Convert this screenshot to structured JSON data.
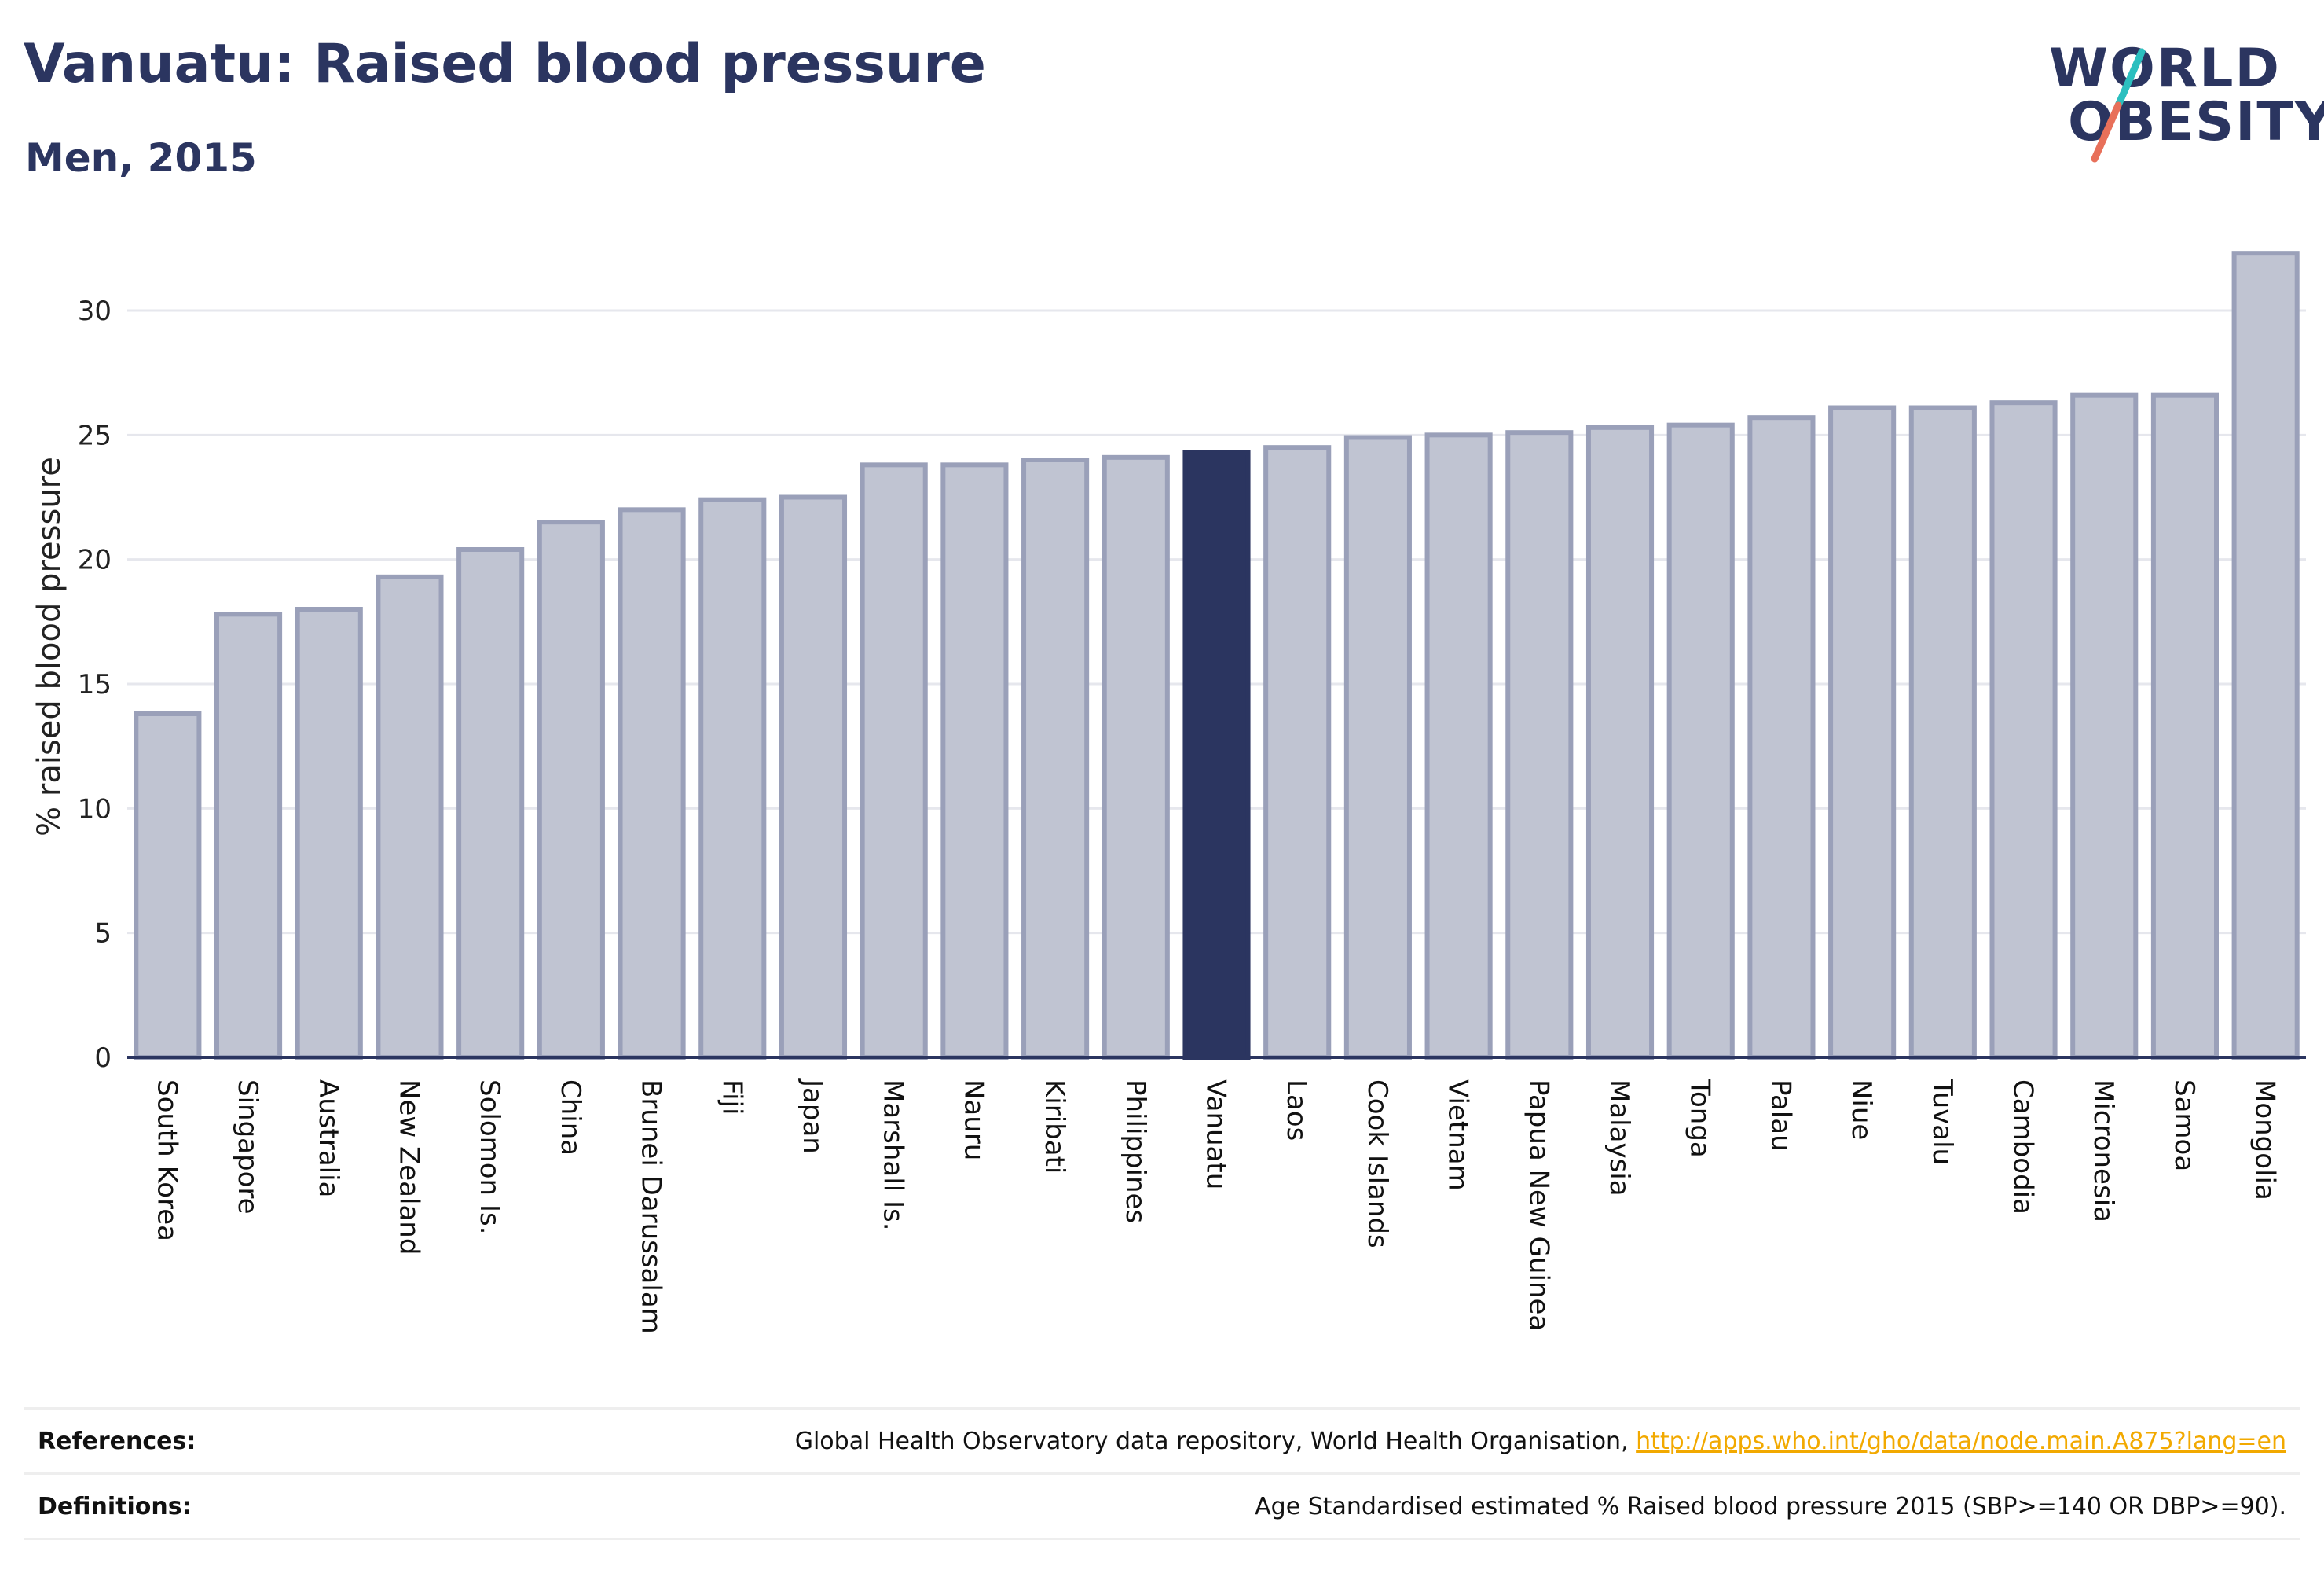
{
  "header": {
    "title": "Vanuatu: Raised blood pressure",
    "subtitle": "Men, 2015"
  },
  "logo": {
    "line1": "WORLD",
    "line2": "OBESITY",
    "colors": {
      "text": "#2b3560",
      "slash_top": "#2bbfbf",
      "slash_bottom": "#e8705a"
    }
  },
  "colors": {
    "bar": "#c0c4d2",
    "bar_border": "#9aa0b9",
    "highlight": "#2b3560",
    "grid": "#e6e7ed",
    "axis": "#2b3560"
  },
  "chart_data": {
    "type": "bar",
    "ylabel": "% raised blood pressure",
    "ylim": [
      0,
      33
    ],
    "yticks": [
      0,
      5,
      10,
      15,
      20,
      25,
      30
    ],
    "grid": true,
    "highlight": "Vanuatu",
    "categories": [
      "South Korea",
      "Singapore",
      "Australia",
      "New Zealand",
      "Solomon Is.",
      "China",
      "Brunei Darussalam",
      "Fiji",
      "Japan",
      "Marshall Is.",
      "Nauru",
      "Kiribati",
      "Philippines",
      "Vanuatu",
      "Laos",
      "Cook Islands",
      "Vietnam",
      "Papua New Guinea",
      "Malaysia",
      "Tonga",
      "Palau",
      "Niue",
      "Tuvalu",
      "Cambodia",
      "Micronesia",
      "Samoa",
      "Mongolia"
    ],
    "values": [
      13.8,
      17.8,
      18.0,
      19.3,
      20.4,
      21.5,
      22.0,
      22.4,
      22.5,
      23.8,
      23.8,
      24.0,
      24.1,
      24.3,
      24.5,
      24.9,
      25.0,
      25.1,
      25.3,
      25.4,
      25.7,
      26.1,
      26.1,
      26.3,
      26.6,
      26.6,
      32.3
    ]
  },
  "footer": {
    "references_label": "References:",
    "references_text": "Global Health Observatory data repository, World Health Organisation, ",
    "references_link": "http://apps.who.int/gho/data/node.main.A875?lang=en",
    "definitions_label": "Definitions:",
    "definitions_text": "Age Standardised estimated % Raised blood pressure 2015 (SBP>=140 OR DBP>=90)."
  }
}
